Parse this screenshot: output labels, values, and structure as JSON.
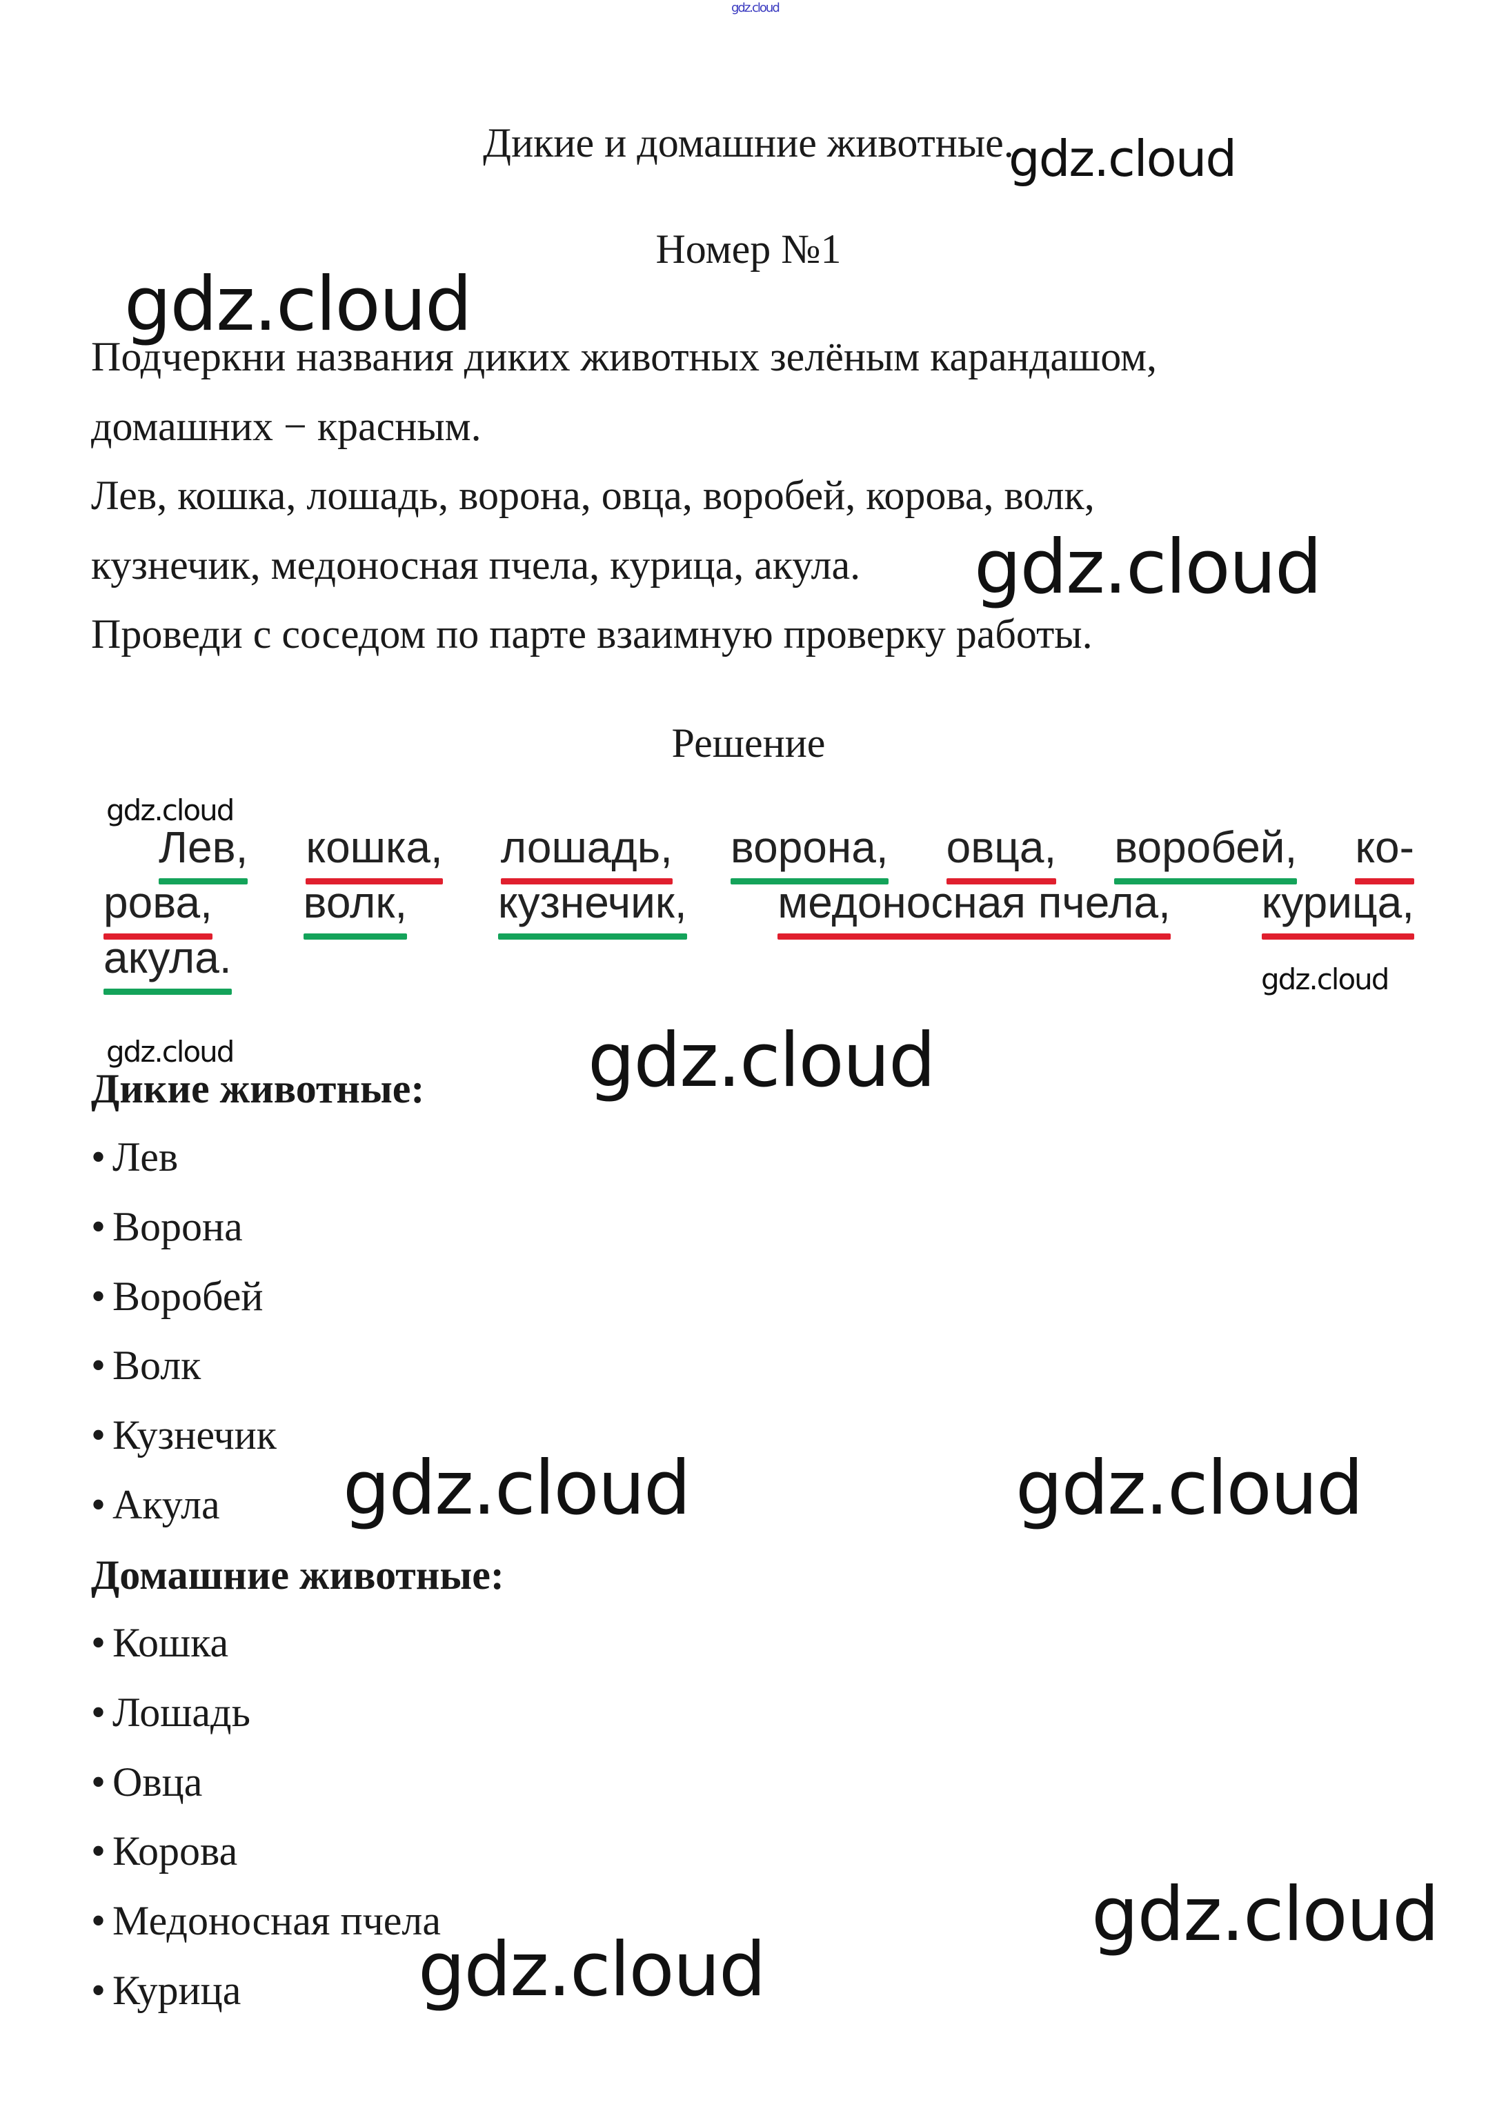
{
  "watermarks": {
    "text": "gdz.cloud"
  },
  "header": {
    "title": "Дикие и домашние животные.",
    "number": "Номер №1"
  },
  "task": {
    "lines": [
      "Подчеркни названия диких животных зелёным карандашом,",
      "домашних − красным.",
      "Лев, кошка, лошадь, ворона, овца, воробей, корова, волк,",
      "кузнечик, медоносная пчела, курица, акула.",
      "Проведи с соседом по парте взаимную проверку работы."
    ]
  },
  "solution": {
    "heading": "Решение",
    "colors": {
      "wild": "#14a35a",
      "domestic": "#e01f2e"
    },
    "lines": [
      [
        {
          "text": "Лев,",
          "type": "wild"
        },
        {
          "text": "кошка,",
          "type": "domestic"
        },
        {
          "text": "лошадь,",
          "type": "domestic"
        },
        {
          "text": "ворона,",
          "type": "wild"
        },
        {
          "text": "овца,",
          "type": "domestic"
        },
        {
          "text": "воробей,",
          "type": "wild"
        },
        {
          "text": "ко-",
          "type": "domestic"
        }
      ],
      [
        {
          "text": "рова,",
          "type": "domestic"
        },
        {
          "text": "волк,",
          "type": "wild"
        },
        {
          "text": "кузнечик,",
          "type": "wild"
        },
        {
          "text": "медоносная пчела,",
          "type": "domestic"
        },
        {
          "text": "курица,",
          "type": "domestic"
        }
      ],
      [
        {
          "text": "акула.",
          "type": "wild"
        }
      ]
    ],
    "wild_heading": "Дикие животные:",
    "wild": [
      "Лев",
      "Ворона",
      "Воробей",
      "Волк",
      "Кузнечик",
      "Акула"
    ],
    "domestic_heading": "Домашние животные:",
    "domestic": [
      "Кошка",
      "Лошадь",
      "Овца",
      "Корова",
      "Медоносная пчела",
      "Курица"
    ],
    "bullet": "•"
  }
}
